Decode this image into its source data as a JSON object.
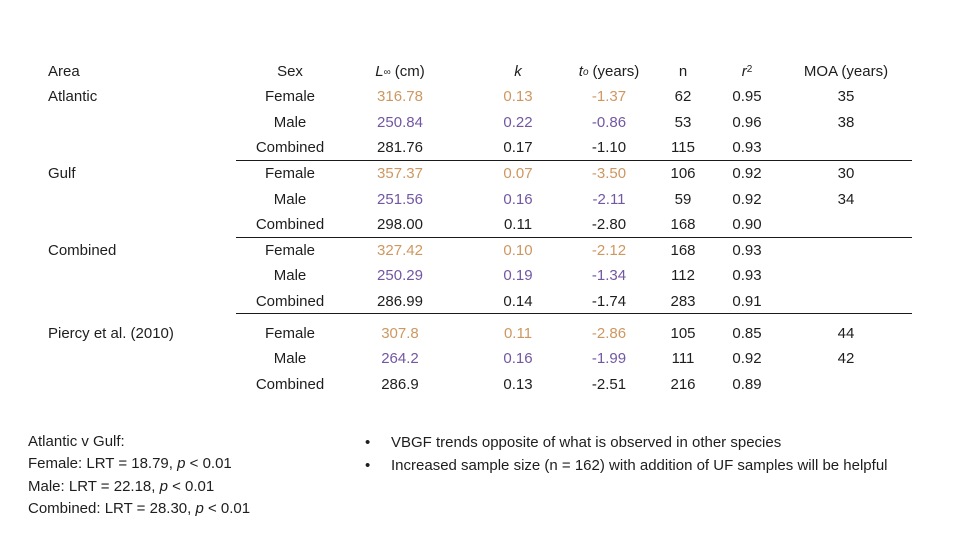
{
  "colors": {
    "female_values": "#CE9760",
    "male_values": "#7257A2",
    "combined_values": "#1E1E1E",
    "text": "#1E1E1E"
  },
  "table": {
    "headers": {
      "area": "Area",
      "sex": "Sex",
      "linf_symbol": "L",
      "linf_sub": "∞",
      "linf_unit": "(cm)",
      "k": "k",
      "t0_symbol": "t",
      "t0_sub": "o",
      "t0_unit": "(years)",
      "n": "n",
      "r2_symbol": "r",
      "r2_sup": "2",
      "moa": "MOA (years)"
    },
    "blocks": [
      {
        "area": "Atlantic",
        "divider": true,
        "gap_before": false,
        "rows": [
          {
            "sex": "Female",
            "linf": "316.78",
            "k": "0.13",
            "t0": "-1.37",
            "n": "62",
            "r2": "0.95",
            "moa": "35",
            "tone": "female"
          },
          {
            "sex": "Male",
            "linf": "250.84",
            "k": "0.22",
            "t0": "-0.86",
            "n": "53",
            "r2": "0.96",
            "moa": "38",
            "tone": "male"
          },
          {
            "sex": "Combined",
            "linf": "281.76",
            "k": "0.17",
            "t0": "-1.10",
            "n": "115",
            "r2": "0.93",
            "moa": "",
            "tone": "combined"
          }
        ]
      },
      {
        "area": "Gulf",
        "divider": true,
        "gap_before": false,
        "rows": [
          {
            "sex": "Female",
            "linf": "357.37",
            "k": "0.07",
            "t0": "-3.50",
            "n": "106",
            "r2": "0.92",
            "moa": "30",
            "tone": "female"
          },
          {
            "sex": "Male",
            "linf": "251.56",
            "k": "0.16",
            "t0": "-2.11",
            "n": "59",
            "r2": "0.92",
            "moa": "34",
            "tone": "male"
          },
          {
            "sex": "Combined",
            "linf": "298.00",
            "k": "0.11",
            "t0": "-2.80",
            "n": "168",
            "r2": "0.90",
            "moa": "",
            "tone": "combined"
          }
        ]
      },
      {
        "area": "Combined",
        "divider": true,
        "gap_before": false,
        "rows": [
          {
            "sex": "Female",
            "linf": "327.42",
            "k": "0.10",
            "t0": "-2.12",
            "n": "168",
            "r2": "0.93",
            "moa": "",
            "tone": "female"
          },
          {
            "sex": "Male",
            "linf": "250.29",
            "k": "0.19",
            "t0": "-1.34",
            "n": "112",
            "r2": "0.93",
            "moa": "",
            "tone": "male"
          },
          {
            "sex": "Combined",
            "linf": "286.99",
            "k": "0.14",
            "t0": "-1.74",
            "n": "283",
            "r2": "0.91",
            "moa": "",
            "tone": "combined"
          }
        ]
      },
      {
        "area": "Piercy et al. (2010)",
        "divider": false,
        "gap_before": true,
        "rows": [
          {
            "sex": "Female",
            "linf": "307.8",
            "k": "0.11",
            "t0": "-2.86",
            "n": "105",
            "r2": "0.85",
            "moa": "44",
            "tone": "female"
          },
          {
            "sex": "Male",
            "linf": "264.2",
            "k": "0.16",
            "t0": "-1.99",
            "n": "111",
            "r2": "0.92",
            "moa": "42",
            "tone": "male"
          },
          {
            "sex": "Combined",
            "linf": "286.9",
            "k": "0.13",
            "t0": "-2.51",
            "n": "216",
            "r2": "0.89",
            "moa": "",
            "tone": "combined"
          }
        ]
      }
    ]
  },
  "stats": {
    "title": "Atlantic v Gulf:",
    "lines": [
      {
        "prefix": "Female: LRT = 18.79, ",
        "italic": "p",
        "suffix": " < 0.01"
      },
      {
        "prefix": "Male: LRT = 22.18, ",
        "italic": "p",
        "suffix": " < 0.01"
      },
      {
        "prefix": "Combined: LRT = 28.30, ",
        "italic": "p",
        "suffix": " < 0.01"
      }
    ]
  },
  "bullets": [
    "VBGF trends opposite of what is observed in other species",
    "Increased sample size (n = 162) with addition of UF samples will be helpful"
  ],
  "bullet_icon": "•"
}
